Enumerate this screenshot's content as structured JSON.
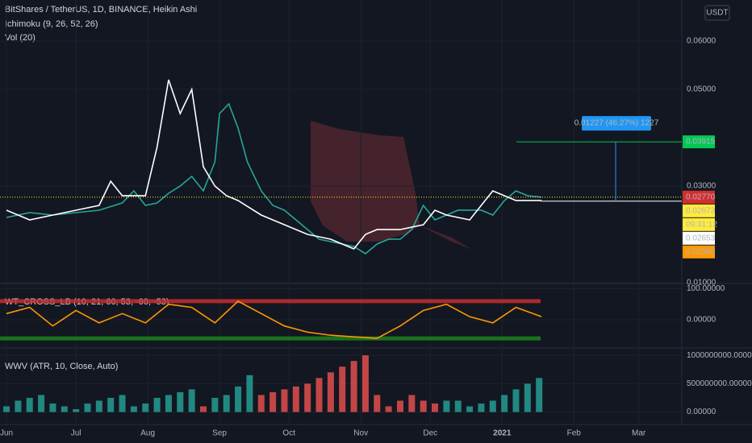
{
  "header": {
    "title": "BitShares / TetherUS, 1D, BINANCE, Heikin Ashi",
    "indicators": [
      "Ichimoku (9, 26, 52, 26)",
      "Vol (20)"
    ],
    "currency_button": "USDT"
  },
  "chart_data": [
    {
      "type": "line",
      "xlim": [
        -2.8,
        291.6
      ],
      "ylim": [
        0.00983,
        0.0685
      ],
      "xticks": [
        {
          "value": 0,
          "label": "Jun"
        },
        {
          "value": 30,
          "label": "Jul"
        },
        {
          "value": 61,
          "label": "Aug"
        },
        {
          "value": 92,
          "label": "Sep"
        },
        {
          "value": 122,
          "label": "Oct"
        },
        {
          "value": 153,
          "label": "Nov"
        },
        {
          "value": 183,
          "label": "Dec"
        },
        {
          "value": 214,
          "label": "2021"
        },
        {
          "value": 245,
          "label": "Feb"
        },
        {
          "value": 273,
          "label": "Mar"
        }
      ],
      "yticks": [
        {
          "value": 0.06,
          "label": "0.06000"
        },
        {
          "value": 0.05,
          "label": "0.05000"
        },
        {
          "value": 0.03,
          "label": "0.03000"
        },
        {
          "value": 0.01,
          "label": "0.01000"
        }
      ],
      "series": [
        {
          "color": "#26a69a",
          "x": [
            0,
            10,
            20,
            30,
            40,
            50,
            55,
            60,
            65,
            70,
            75,
            80,
            85,
            90,
            92,
            96,
            100,
            104,
            110,
            115,
            120,
            125,
            130,
            135,
            140,
            145,
            150,
            155,
            160,
            165,
            170,
            175,
            180,
            185,
            190,
            195,
            200,
            205,
            210,
            215,
            220,
            225,
            231
          ],
          "values": [
            0.0235,
            0.0245,
            0.024,
            0.0245,
            0.025,
            0.0265,
            0.029,
            0.026,
            0.0265,
            0.0285,
            0.03,
            0.032,
            0.029,
            0.035,
            0.045,
            0.047,
            0.042,
            0.035,
            0.029,
            0.026,
            0.025,
            0.023,
            0.021,
            0.019,
            0.0185,
            0.018,
            0.0175,
            0.016,
            0.018,
            0.019,
            0.019,
            0.021,
            0.026,
            0.023,
            0.024,
            0.025,
            0.025,
            0.025,
            0.024,
            0.027,
            0.029,
            0.028,
            0.0277
          ]
        },
        {
          "color": "#ffffff",
          "x": [
            0,
            10,
            20,
            30,
            40,
            45,
            50,
            60,
            65,
            70,
            75,
            80,
            85,
            90,
            95,
            100,
            110,
            120,
            130,
            140,
            150,
            155,
            160,
            170,
            180,
            185,
            190,
            200,
            205,
            210,
            215,
            220,
            231
          ],
          "values": [
            0.025,
            0.023,
            0.024,
            0.025,
            0.026,
            0.031,
            0.028,
            0.028,
            0.038,
            0.052,
            0.045,
            0.05,
            0.034,
            0.03,
            0.028,
            0.027,
            0.024,
            0.022,
            0.02,
            0.019,
            0.017,
            0.02,
            0.021,
            0.021,
            0.022,
            0.025,
            0.024,
            0.023,
            0.026,
            0.029,
            0.028,
            0.027,
            0.027
          ]
        }
      ],
      "last_price_line": 0.0277,
      "measure": {
        "from": 0.02688,
        "to": 0.03915,
        "label": "0.01227 (46.27%) 1227"
      },
      "price_tags": [
        {
          "value": 0.03915,
          "label": "0.03915",
          "color": "#00c853"
        },
        {
          "value": 0.0277,
          "label": "0.02770",
          "color": "#d32f2f"
        },
        {
          "value": 0.02673,
          "label": "0.02673",
          "color": "#ffeb3b"
        },
        {
          "label": "09:31:12",
          "color": "#ffeb3b"
        },
        {
          "value": 0.02653,
          "label": "0.02653",
          "color": "#ffffff"
        },
        {
          "value": 0.0239,
          "label": "0.02390",
          "color": "#ff9800"
        }
      ]
    },
    {
      "type": "line",
      "title": "WT_CROSS_LB (10, 21, 60, 53, -60, -53)",
      "xlim": [
        -2.8,
        291.6
      ],
      "ylim": [
        -91,
        117
      ],
      "yticks": [
        {
          "value": 100,
          "label": "100.00000"
        },
        {
          "value": 0,
          "label": "0.00000"
        }
      ],
      "levels": [
        {
          "value": 60,
          "color": "#d32f2f"
        },
        {
          "value": -60,
          "color": "#1b8a1b"
        }
      ],
      "series": [
        {
          "color": "#ff9800",
          "x": [
            0,
            10,
            20,
            30,
            40,
            50,
            60,
            70,
            80,
            90,
            100,
            110,
            120,
            130,
            140,
            150,
            160,
            170,
            180,
            190,
            200,
            210,
            220,
            231
          ],
          "values": [
            20,
            40,
            -20,
            30,
            -10,
            20,
            -10,
            50,
            40,
            -10,
            60,
            20,
            -20,
            -40,
            -50,
            -55,
            -60,
            -20,
            30,
            50,
            10,
            -10,
            40,
            10
          ]
        }
      ]
    },
    {
      "type": "bar",
      "title": "WWV (ATR, 10, Close, Auto)",
      "xlim": [
        -2.8,
        291.6
      ],
      "ylim": [
        -220000000,
        1130000000
      ],
      "yticks": [
        {
          "value": 1000000000,
          "label": "1000000000.00000"
        },
        {
          "value": 500000000,
          "label": "500000000.00000"
        },
        {
          "value": 0,
          "label": "0.00000"
        }
      ],
      "x": [
        0,
        5,
        10,
        15,
        20,
        25,
        30,
        35,
        40,
        45,
        50,
        55,
        60,
        65,
        70,
        75,
        80,
        85,
        90,
        95,
        100,
        105,
        110,
        115,
        120,
        125,
        130,
        135,
        140,
        145,
        150,
        155,
        160,
        165,
        170,
        175,
        180,
        185,
        190,
        195,
        200,
        205,
        210,
        215,
        220,
        225,
        230
      ],
      "values": [
        100000000,
        200000000,
        250000000,
        300000000,
        150000000,
        100000000,
        50000000,
        150000000,
        200000000,
        250000000,
        300000000,
        100000000,
        150000000,
        250000000,
        300000000,
        350000000,
        400000000,
        100000000,
        250000000,
        300000000,
        450000000,
        650000000,
        300000000,
        350000000,
        400000000,
        450000000,
        500000000,
        600000000,
        700000000,
        800000000,
        900000000,
        1000000000,
        300000000,
        100000000,
        200000000,
        300000000,
        200000000,
        150000000,
        200000000,
        200000000,
        100000000,
        150000000,
        200000000,
        300000000,
        400000000,
        500000000,
        600000000
      ],
      "colors": [
        "#26a69a",
        "#26a69a",
        "#26a69a",
        "#26a69a",
        "#26a69a",
        "#26a69a",
        "#26a69a",
        "#26a69a",
        "#26a69a",
        "#26a69a",
        "#26a69a",
        "#26a69a",
        "#26a69a",
        "#26a69a",
        "#26a69a",
        "#26a69a",
        "#26a69a",
        "#ef5350",
        "#26a69a",
        "#26a69a",
        "#26a69a",
        "#26a69a",
        "#ef5350",
        "#ef5350",
        "#ef5350",
        "#ef5350",
        "#ef5350",
        "#ef5350",
        "#ef5350",
        "#ef5350",
        "#ef5350",
        "#ef5350",
        "#ef5350",
        "#ef5350",
        "#ef5350",
        "#ef5350",
        "#ef5350",
        "#ef5350",
        "#26a69a",
        "#26a69a",
        "#26a69a",
        "#26a69a",
        "#26a69a",
        "#26a69a",
        "#26a69a",
        "#26a69a",
        "#26a69a"
      ]
    }
  ]
}
